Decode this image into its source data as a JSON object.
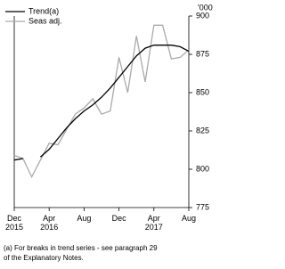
{
  "chart_data": {
    "type": "line",
    "y_unit_label": "'000",
    "categories": [
      "Dec\n2015",
      null,
      null,
      null,
      "Apr\n2016",
      null,
      null,
      null,
      "Aug",
      null,
      null,
      null,
      "Dec",
      null,
      null,
      null,
      "Apr\n2017",
      null,
      null,
      null,
      "Aug"
    ],
    "series": [
      {
        "name": "Trend(a)",
        "color": "#000000",
        "values": [
          806,
          807,
          null,
          808,
          813,
          820,
          827,
          833,
          838,
          842,
          847,
          853,
          860,
          867,
          874,
          879,
          881,
          881,
          881,
          880,
          877
        ]
      },
      {
        "name": "Seas adj.",
        "color": "#aaaaaa",
        "values": [
          809,
          807,
          795,
          806,
          817,
          816,
          826,
          836,
          840,
          846,
          836,
          838,
          873,
          850,
          887,
          857,
          894,
          894,
          872,
          873,
          878
        ]
      }
    ],
    "ylim": [
      775,
      900
    ],
    "yticks": [
      775,
      800,
      825,
      850,
      875,
      900
    ],
    "footnote": [
      "(a) For breaks in trend series - see paragraph 29",
      "of the Explanatory Notes."
    ]
  }
}
